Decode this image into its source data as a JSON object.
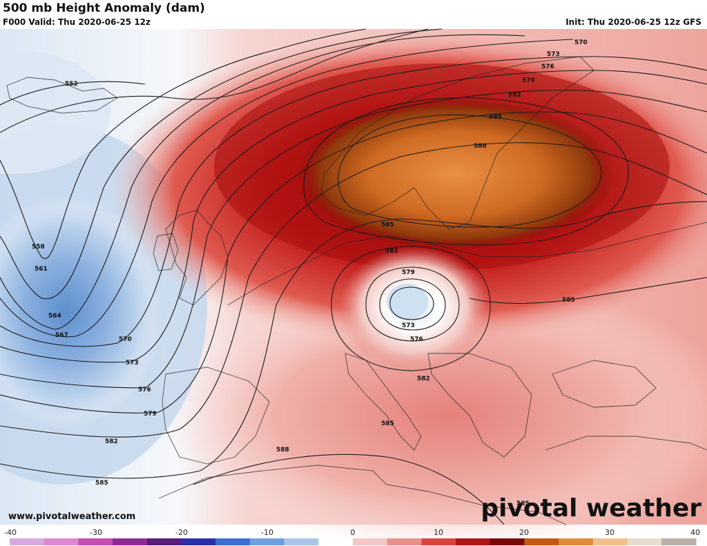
{
  "header": {
    "title": "500 mb Height Anomaly (dam)",
    "valid": "F000 Valid: Thu 2020-06-25 12z",
    "init": "Init: Thu 2020-06-25 12z GFS"
  },
  "footer": {
    "website": "www.pivotalweather.com",
    "brand": "pivotal weather"
  },
  "colorbar": {
    "min": -40,
    "max": 40,
    "ticks": [
      "-40",
      "-30",
      "-20",
      "-10",
      "0",
      "10",
      "20",
      "30",
      "40"
    ],
    "colors": [
      "#d9a8e0",
      "#e088d4",
      "#c44fb3",
      "#8e2a94",
      "#5a1b7a",
      "#2a2fa8",
      "#3a6fd0",
      "#6f9fde",
      "#a9c6ea",
      "#ffffff",
      "#f3c7c4",
      "#e8918a",
      "#d8433d",
      "#b01414",
      "#7a0606",
      "#c05a14",
      "#e08c3a",
      "#f0c08a",
      "#e8dccc",
      "#b8b0a8"
    ]
  },
  "contour_labels": [
    "552",
    "558",
    "561",
    "564",
    "567",
    "570",
    "573",
    "576",
    "579",
    "582",
    "585",
    "588"
  ],
  "map_labels": {
    "west": [
      {
        "text": "552"
      },
      {
        "text": "558"
      },
      {
        "text": "561"
      },
      {
        "text": "564"
      },
      {
        "text": "567"
      },
      {
        "text": "570"
      },
      {
        "text": "573"
      },
      {
        "text": "576"
      },
      {
        "text": "579"
      },
      {
        "text": "582"
      },
      {
        "text": "585"
      }
    ],
    "north": [
      {
        "text": "570"
      },
      {
        "text": "573"
      },
      {
        "text": "576"
      },
      {
        "text": "579"
      },
      {
        "text": "582"
      },
      {
        "text": "585"
      },
      {
        "text": "588"
      }
    ],
    "center": [
      {
        "text": "585"
      },
      {
        "text": "582"
      },
      {
        "text": "579"
      },
      {
        "text": "573"
      },
      {
        "text": "576"
      },
      {
        "text": "582"
      },
      {
        "text": "585"
      },
      {
        "text": "585"
      },
      {
        "text": "588"
      },
      {
        "text": "585"
      }
    ]
  },
  "colors": {
    "trough": "#5c8fce",
    "ridge": "#b40f0f",
    "high_core": "#d8702a"
  }
}
